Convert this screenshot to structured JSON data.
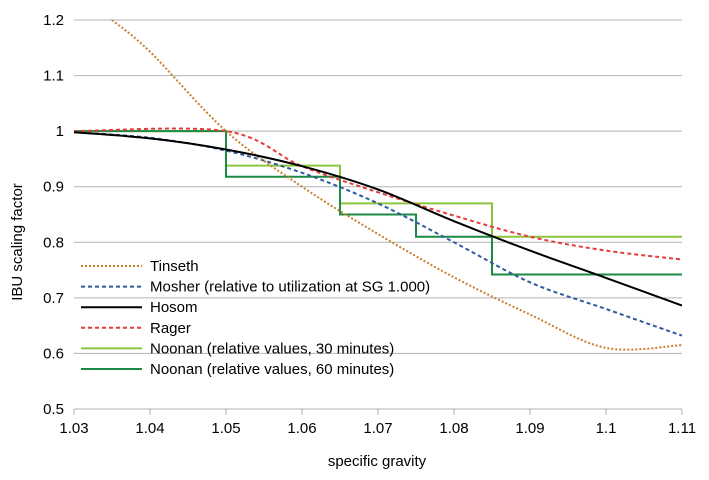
{
  "chart_data": {
    "type": "line",
    "title": "",
    "xlabel": "specific gravity",
    "ylabel": "IBU scaling factor",
    "xlim": [
      1.03,
      1.11
    ],
    "ylim": [
      0.5,
      1.2
    ],
    "x_ticks": [
      "1.03",
      "1.04",
      "1.05",
      "1.06",
      "1.07",
      "1.08",
      "1.09",
      "1.1",
      "1.11"
    ],
    "y_ticks": [
      "0.5",
      "0.6",
      "0.7",
      "0.8",
      "0.9",
      "1",
      "1.1",
      "1.2"
    ],
    "grid": "horizontal",
    "legend_position": "inside-bottom-left",
    "series": [
      {
        "name": "Tinseth",
        "color": "#c87f2e",
        "dash": "dotted",
        "step": false,
        "points": [
          [
            1.035,
            1.2
          ],
          [
            1.04,
            1.143
          ],
          [
            1.05,
            1.0
          ],
          [
            1.06,
            0.9
          ],
          [
            1.07,
            0.815
          ],
          [
            1.08,
            0.737
          ],
          [
            1.09,
            0.67
          ],
          [
            1.1,
            0.61
          ],
          [
            1.11,
            0.615
          ]
        ]
      },
      {
        "name": "Mosher (relative to utilization at SG 1.000)",
        "color": "#2f5a9e",
        "dash": "dashed",
        "step": false,
        "points": [
          [
            1.03,
            0.998
          ],
          [
            1.04,
            0.988
          ],
          [
            1.05,
            0.965
          ],
          [
            1.06,
            0.925
          ],
          [
            1.07,
            0.87
          ],
          [
            1.08,
            0.8
          ],
          [
            1.09,
            0.728
          ],
          [
            1.1,
            0.68
          ],
          [
            1.11,
            0.632
          ]
        ]
      },
      {
        "name": "Hosom",
        "color": "#000000",
        "dash": "solid",
        "step": false,
        "points": [
          [
            1.03,
            0.998
          ],
          [
            1.04,
            0.987
          ],
          [
            1.05,
            0.967
          ],
          [
            1.06,
            0.937
          ],
          [
            1.07,
            0.895
          ],
          [
            1.08,
            0.838
          ],
          [
            1.09,
            0.785
          ],
          [
            1.1,
            0.736
          ],
          [
            1.11,
            0.686
          ]
        ]
      },
      {
        "name": "Rager",
        "color": "#e63b3b",
        "dash": "dashed",
        "step": false,
        "points": [
          [
            1.03,
            1.0
          ],
          [
            1.05,
            1.0
          ],
          [
            1.06,
            0.937
          ],
          [
            1.07,
            0.89
          ],
          [
            1.08,
            0.848
          ],
          [
            1.09,
            0.81
          ],
          [
            1.1,
            0.785
          ],
          [
            1.11,
            0.769
          ]
        ]
      },
      {
        "name": "Noonan (relative values, 30 minutes)",
        "color": "#8cc63f",
        "dash": "solid",
        "step": true,
        "points": [
          [
            1.03,
            1.0
          ],
          [
            1.05,
            1.0
          ],
          [
            1.05,
            0.938
          ],
          [
            1.065,
            0.938
          ],
          [
            1.065,
            0.87
          ],
          [
            1.085,
            0.87
          ],
          [
            1.085,
            0.81
          ],
          [
            1.11,
            0.81
          ]
        ]
      },
      {
        "name": "Noonan (relative values, 60 minutes)",
        "color": "#1d8a43",
        "dash": "solid",
        "step": true,
        "points": [
          [
            1.03,
            1.0
          ],
          [
            1.05,
            1.0
          ],
          [
            1.05,
            0.918
          ],
          [
            1.065,
            0.918
          ],
          [
            1.065,
            0.85
          ],
          [
            1.075,
            0.85
          ],
          [
            1.075,
            0.81
          ],
          [
            1.085,
            0.81
          ],
          [
            1.085,
            0.742
          ],
          [
            1.11,
            0.742
          ]
        ]
      }
    ]
  }
}
